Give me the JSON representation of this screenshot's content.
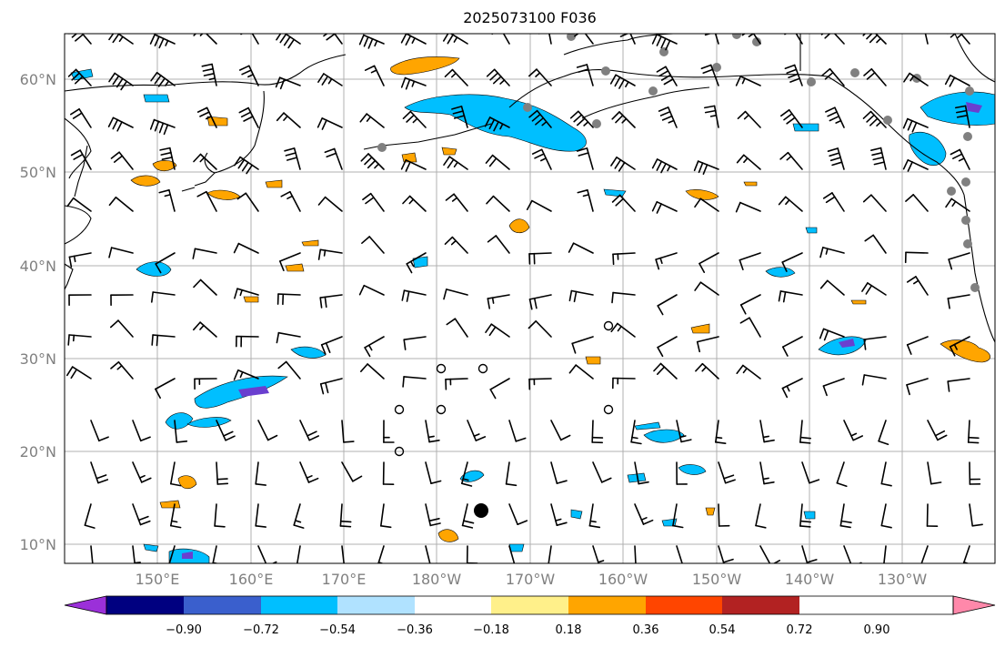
{
  "title": "2025073100 F036",
  "axes": {
    "lat_labels": [
      "60°N",
      "50°N",
      "40°N",
      "30°N",
      "20°N",
      "10°N"
    ],
    "lon_labels": [
      "150°E",
      "160°E",
      "170°E",
      "180°W",
      "170°W",
      "160°W",
      "150°W",
      "140°W",
      "130°W"
    ]
  },
  "colorbar": {
    "tick_labels": [
      "−0.90",
      "−0.72",
      "−0.54",
      "−0.36",
      "−0.18",
      "0.18",
      "0.36",
      "0.54",
      "0.72",
      "0.90"
    ],
    "colors": [
      "#9b30d9",
      "#000080",
      "#3a5fcd",
      "#00bfff",
      "#b0e2ff",
      "#ffffff",
      "#fff08a",
      "#ffa500",
      "#ff4500",
      "#b22222",
      "#ff88aa"
    ]
  },
  "map": {
    "lon_range": [
      140,
      237
    ],
    "lat_range": [
      8,
      65
    ],
    "grid": true,
    "colors": {
      "negative_strong": "#6a3fcf",
      "negative": "#00bfff",
      "negative_weak": "#b0e2ff",
      "positive": "#ffa500",
      "positive_weak": "#fff08a"
    }
  }
}
